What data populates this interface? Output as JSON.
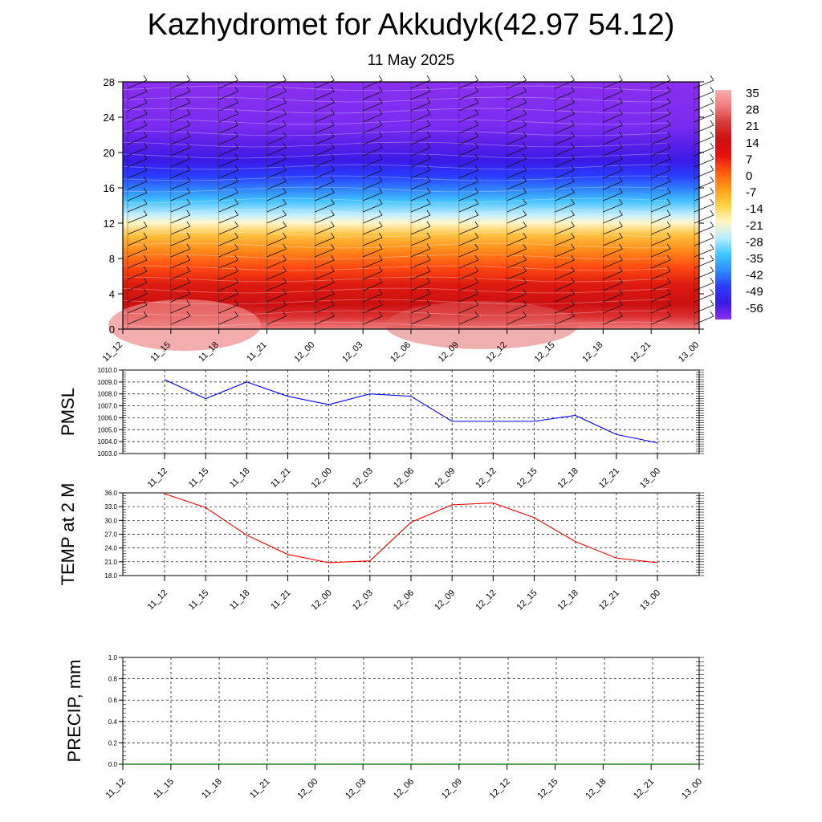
{
  "title": "Kazhydromet for Akkudyk(42.97 54.12)",
  "subtitle": "11 May 2025",
  "chart_data": [
    {
      "type": "heatmap",
      "description_role": "temperature cross-section with wind barbs",
      "x_ticks": [
        "11_12",
        "11_15",
        "11_18",
        "11_21",
        "12_00",
        "12_03",
        "12_06",
        "12_09",
        "12_12",
        "12_15",
        "12_18",
        "12_21",
        "13_00"
      ],
      "y_ticks": [
        0,
        4,
        8,
        12,
        16,
        20,
        24,
        28
      ],
      "ylim": [
        0,
        28
      ],
      "colorbar_labels": [
        "35",
        "28",
        "21",
        "14",
        "7",
        "0",
        "-7",
        "-14",
        "-21",
        "-28",
        "-35",
        "-42",
        "-49",
        "-56"
      ],
      "colorbar_range": [
        -60,
        38
      ],
      "colors": {
        "stops": [
          "#8b2ff0",
          "#3a1ae6",
          "#2a3cff",
          "#2f8cff",
          "#41c8ff",
          "#bdeeff",
          "#fff8c0",
          "#ffd040",
          "#ff9a1a",
          "#ff5a10",
          "#e81010",
          "#cc1010",
          "#d63a3a",
          "#f07a7a",
          "#f8b0b0"
        ]
      }
    },
    {
      "type": "line",
      "ylabel": "PMSL",
      "ylim": [
        1003.0,
        1010.0
      ],
      "y_ticks": [
        "1003.0",
        "1004.0",
        "1005.0",
        "1006.0",
        "1007.0",
        "1008.0",
        "1009.0",
        "1010.0"
      ],
      "x": [
        "11_12",
        "11_15",
        "11_18",
        "11_21",
        "12_00",
        "12_03",
        "12_06",
        "12_09",
        "12_12",
        "12_15",
        "12_18",
        "12_21",
        "13_00"
      ],
      "series": [
        {
          "values": [
            1009.2,
            1007.6,
            1009.0,
            1007.8,
            1007.1,
            1008.0,
            1007.8,
            1005.7,
            1005.7,
            1005.7,
            1006.2,
            1004.6,
            1003.9
          ],
          "color": "#0000ff"
        }
      ]
    },
    {
      "type": "line",
      "ylabel": "TEMP at 2 M",
      "ylim": [
        18.0,
        36.0
      ],
      "y_ticks": [
        "18.0",
        "21.0",
        "24.0",
        "27.0",
        "30.0",
        "33.0",
        "36.0"
      ],
      "x": [
        "11_12",
        "11_15",
        "11_18",
        "11_21",
        "12_00",
        "12_03",
        "12_06",
        "12_09",
        "12_12",
        "12_15",
        "12_18",
        "12_21",
        "13_00"
      ],
      "series": [
        {
          "values": [
            35.8,
            32.8,
            26.8,
            22.6,
            20.8,
            21.2,
            29.6,
            33.4,
            33.8,
            30.6,
            25.4,
            21.8,
            20.8
          ],
          "color": "#ff0000"
        }
      ]
    },
    {
      "type": "line",
      "ylabel": "PRECIP, mm",
      "ylim": [
        0.0,
        1.0
      ],
      "y_ticks": [
        "0.0",
        "0.2",
        "0.4",
        "0.6",
        "0.8",
        "1.0"
      ],
      "x_ticks": [
        "11_12",
        "11_15",
        "11_18",
        "11_21",
        "12_00",
        "12_03",
        "12_06",
        "12_09",
        "12_12",
        "12_15",
        "12_18",
        "12_21",
        "13_00"
      ],
      "x": [
        "11_12",
        "11_15",
        "11_18",
        "11_21",
        "12_00",
        "12_03",
        "12_06",
        "12_09",
        "12_12",
        "12_15",
        "12_18",
        "12_21",
        "13_00"
      ],
      "series": [
        {
          "values": [
            0,
            0,
            0,
            0,
            0,
            0,
            0,
            0,
            0,
            0,
            0,
            0,
            0
          ],
          "color": "#006400"
        }
      ]
    }
  ]
}
